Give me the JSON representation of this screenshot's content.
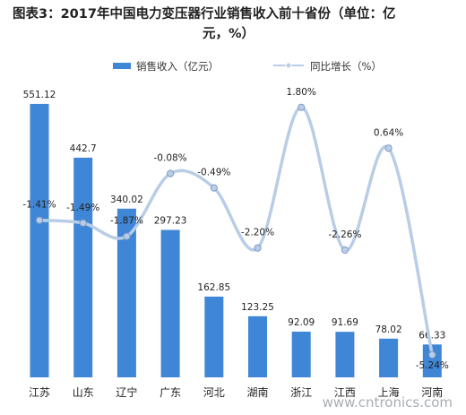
{
  "title_line1": "图表3：2017年中国电力变压器行业销售收入前十省份（单位：亿",
  "title_line2": "元，%）",
  "watermark": "www.cntronics.com",
  "colors": {
    "bar": "#3f86d6",
    "line": "#b9cde6",
    "marker": "#b9cde6",
    "marker_stroke": "#ffffff"
  },
  "chart_data": {
    "type": "bar",
    "categories": [
      "江苏",
      "山东",
      "辽宁",
      "广东",
      "河北",
      "湖南",
      "浙江",
      "江西",
      "上海",
      "河南"
    ],
    "series": [
      {
        "name": "销售收入（亿元）",
        "type": "bar",
        "values": [
          551.12,
          442.7,
          340.02,
          297.23,
          162.85,
          123.25,
          92.09,
          91.69,
          78.02,
          66.33
        ],
        "labels": [
          "551.12",
          "442.7",
          "340.02",
          "297.23",
          "162.85",
          "123.25",
          "92.09",
          "91.69",
          "78.02",
          "66.33"
        ]
      },
      {
        "name": "同比增长（%）",
        "type": "line",
        "values": [
          -1.41,
          -1.49,
          -1.87,
          -0.08,
          -0.49,
          -2.2,
          1.8,
          -2.26,
          0.64,
          -5.24
        ],
        "labels": [
          "-1.41%",
          "-1.49%",
          "-1.87%",
          "-0.08%",
          "-0.49%",
          "-2.20%",
          "1.80%",
          "-2.26%",
          "0.64%",
          "-5.24%"
        ]
      }
    ],
    "ylim": [
      0,
      560
    ],
    "y2lim": [
      -5.6,
      2.0
    ],
    "legend_position": "top-center",
    "grid": false
  }
}
